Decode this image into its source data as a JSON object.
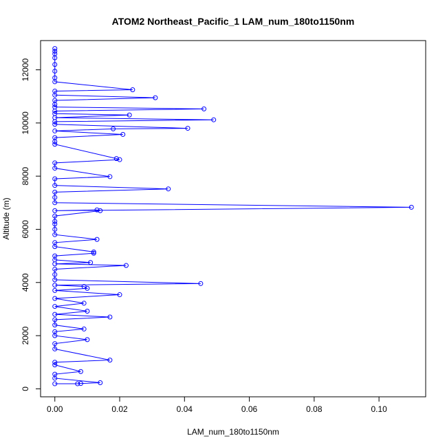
{
  "chart_data": {
    "type": "line",
    "title": "ATOM2 Northeast_Pacific_1 LAM_num_180to1150nm",
    "xlabel": "LAM_num_180to1150nm",
    "ylabel": "Altitude (m)",
    "xlim": [
      -0.0044,
      0.1144
    ],
    "ylim": [
      -300,
      13100
    ],
    "x_ticks": [
      0.0,
      0.02,
      0.04,
      0.06,
      0.08,
      0.1
    ],
    "x_tick_labels": [
      "0.00",
      "0.02",
      "0.04",
      "0.06",
      "0.08",
      "0.10"
    ],
    "y_ticks": [
      0,
      2000,
      4000,
      6000,
      8000,
      10000,
      12000
    ],
    "y_tick_labels": [
      "0",
      "2000",
      "4000",
      "6000",
      "8000",
      "10000",
      "12000"
    ],
    "grid": false,
    "series": [
      {
        "color": "#0000ff",
        "points": [
          [
            0.0,
            12800
          ],
          [
            0.0,
            12700
          ],
          [
            0.0,
            12600
          ],
          [
            0.0,
            12450
          ],
          [
            0.0,
            12200
          ],
          [
            0.0,
            11950
          ],
          [
            0.0,
            11700
          ],
          [
            0.0,
            11550
          ],
          [
            0.024,
            11250
          ],
          [
            0.0,
            11200
          ],
          [
            0.0,
            11050
          ],
          [
            0.031,
            10950
          ],
          [
            0.0,
            10850
          ],
          [
            0.0,
            10700
          ],
          [
            0.0,
            10600
          ],
          [
            0.046,
            10530
          ],
          [
            0.0,
            10450
          ],
          [
            0.0,
            10350
          ],
          [
            0.023,
            10300
          ],
          [
            0.0,
            10200
          ],
          [
            0.049,
            10120
          ],
          [
            0.0,
            10050
          ],
          [
            0.0,
            9950
          ],
          [
            0.041,
            9800
          ],
          [
            0.018,
            9780
          ],
          [
            0.0,
            9700
          ],
          [
            0.021,
            9570
          ],
          [
            0.0,
            9450
          ],
          [
            0.0,
            9300
          ],
          [
            0.0,
            9200
          ],
          [
            0.019,
            8660
          ],
          [
            0.02,
            8620
          ],
          [
            0.0,
            8500
          ],
          [
            0.0,
            8300
          ],
          [
            0.017,
            7980
          ],
          [
            0.0,
            7900
          ],
          [
            0.0,
            7650
          ],
          [
            0.035,
            7520
          ],
          [
            0.0,
            7400
          ],
          [
            0.0,
            7200
          ],
          [
            0.0,
            7000
          ],
          [
            0.11,
            6830
          ],
          [
            0.0,
            6700
          ],
          [
            0.013,
            6730
          ],
          [
            0.014,
            6700
          ],
          [
            0.0,
            6500
          ],
          [
            0.0,
            6300
          ],
          [
            0.0,
            6200
          ],
          [
            0.0,
            6000
          ],
          [
            0.0,
            5800
          ],
          [
            0.013,
            5620
          ],
          [
            0.0,
            5500
          ],
          [
            0.0,
            5350
          ],
          [
            0.012,
            5150
          ],
          [
            0.012,
            5100
          ],
          [
            0.0,
            5000
          ],
          [
            0.0,
            4850
          ],
          [
            0.011,
            4750
          ],
          [
            0.0,
            4700
          ],
          [
            0.022,
            4640
          ],
          [
            0.0,
            4500
          ],
          [
            0.0,
            4300
          ],
          [
            0.0,
            4100
          ],
          [
            0.045,
            3960
          ],
          [
            0.0,
            3900
          ],
          [
            0.009,
            3850
          ],
          [
            0.01,
            3780
          ],
          [
            0.0,
            3700
          ],
          [
            0.02,
            3540
          ],
          [
            0.0,
            3400
          ],
          [
            0.009,
            3220
          ],
          [
            0.0,
            3100
          ],
          [
            0.01,
            2920
          ],
          [
            0.0,
            2800
          ],
          [
            0.017,
            2700
          ],
          [
            0.0,
            2600
          ],
          [
            0.0,
            2400
          ],
          [
            0.009,
            2250
          ],
          [
            0.0,
            2150
          ],
          [
            0.0,
            2000
          ],
          [
            0.01,
            1850
          ],
          [
            0.0,
            1700
          ],
          [
            0.0,
            1500
          ],
          [
            0.017,
            1080
          ],
          [
            0.0,
            1000
          ],
          [
            0.0,
            900
          ],
          [
            0.008,
            650
          ],
          [
            0.0,
            550
          ],
          [
            0.0,
            400
          ],
          [
            0.014,
            230
          ],
          [
            0.008,
            200
          ],
          [
            0.007,
            190
          ],
          [
            0.0,
            190
          ]
        ]
      }
    ]
  }
}
